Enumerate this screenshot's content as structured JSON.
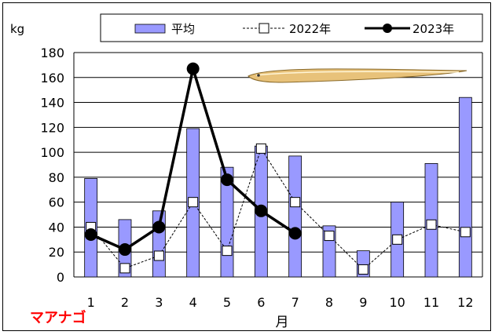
{
  "chart_data": {
    "type": "bar",
    "categories": [
      "1",
      "2",
      "3",
      "4",
      "5",
      "6",
      "7",
      "8",
      "9",
      "10",
      "11",
      "12"
    ],
    "xlabel": "月",
    "ylabel": "kg",
    "ylim": [
      0,
      180
    ],
    "yticks": [
      0,
      20,
      40,
      60,
      80,
      100,
      120,
      140,
      160,
      180
    ],
    "grid": true,
    "legend_position": "top",
    "series": [
      {
        "name": "平均",
        "type": "bar",
        "color": "#9999ff",
        "values": [
          79,
          46,
          53,
          119,
          88,
          105,
          97,
          41,
          21,
          60,
          91,
          144
        ]
      },
      {
        "name": "2022年",
        "type": "line",
        "style": "dashed-square",
        "color": "#000000",
        "values": [
          40,
          7,
          17,
          60,
          21,
          103,
          60,
          33,
          6,
          30,
          42,
          36
        ]
      },
      {
        "name": "2023年",
        "type": "line",
        "style": "solid-circle",
        "color": "#000000",
        "values": [
          34,
          22,
          40,
          167,
          78,
          53,
          35,
          null,
          null,
          null,
          null,
          null
        ]
      }
    ],
    "annotation": "マアナゴ"
  }
}
